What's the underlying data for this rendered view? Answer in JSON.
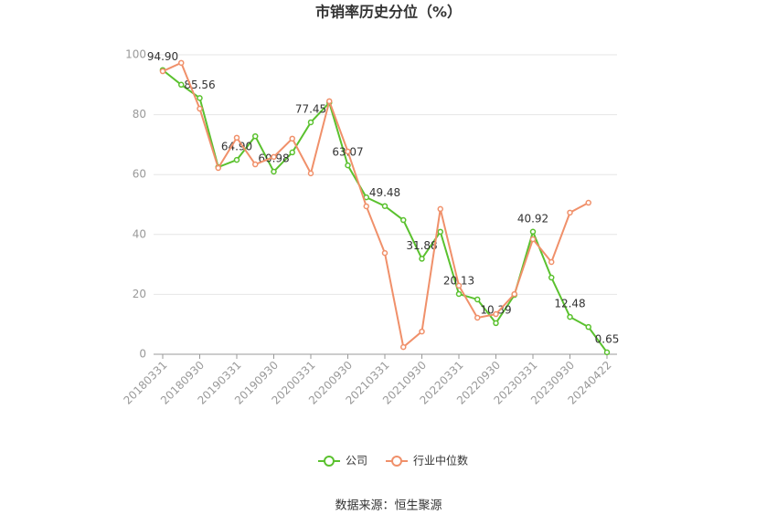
{
  "chart_data": {
    "type": "line",
    "title": "市销率历史分位（%）",
    "categories": [
      "20180331",
      null,
      "20180930",
      null,
      "20190331",
      null,
      "20190930",
      null,
      "20200331",
      null,
      "20200930",
      null,
      "20210331",
      null,
      "20210930",
      null,
      "20220331",
      null,
      "20220930",
      null,
      "20230331",
      null,
      "20230930",
      null,
      "20240422"
    ],
    "series": [
      {
        "name": "公司",
        "color": "#5ac12e",
        "values": [
          94.9,
          90,
          85.56,
          62.5,
          64.9,
          72.8,
          60.98,
          67.4,
          77.45,
          84,
          63.07,
          52.4,
          49.48,
          44.8,
          31.88,
          40.9,
          20.13,
          18.3,
          10.39,
          19.8,
          40.92,
          25.6,
          12.48,
          9.1,
          0.65
        ],
        "value_labels": [
          "94.90",
          null,
          "85.56",
          null,
          "64.90",
          null,
          "60.98",
          null,
          "77.45",
          null,
          "63.07",
          null,
          "49.48",
          null,
          "31.88",
          null,
          "20.13",
          null,
          "10.39",
          null,
          "40.92",
          null,
          "12.48",
          null,
          "0.65"
        ]
      },
      {
        "name": "行业中位数",
        "color": "#f0906a",
        "values": [
          94.5,
          97.3,
          82,
          62.2,
          72.3,
          63.4,
          65.9,
          72,
          60.4,
          84.5,
          67.7,
          49.4,
          33.8,
          2.4,
          7.6,
          48.5,
          22.9,
          12.2,
          13.4,
          20.1,
          38.4,
          30.8,
          47.3,
          50.6,
          null
        ]
      }
    ],
    "ylim": [
      0,
      100
    ],
    "yticks": [
      0,
      20,
      40,
      60,
      80,
      100
    ],
    "grid": true,
    "legend": "bottom",
    "source": "数据来源：恒生聚源"
  }
}
